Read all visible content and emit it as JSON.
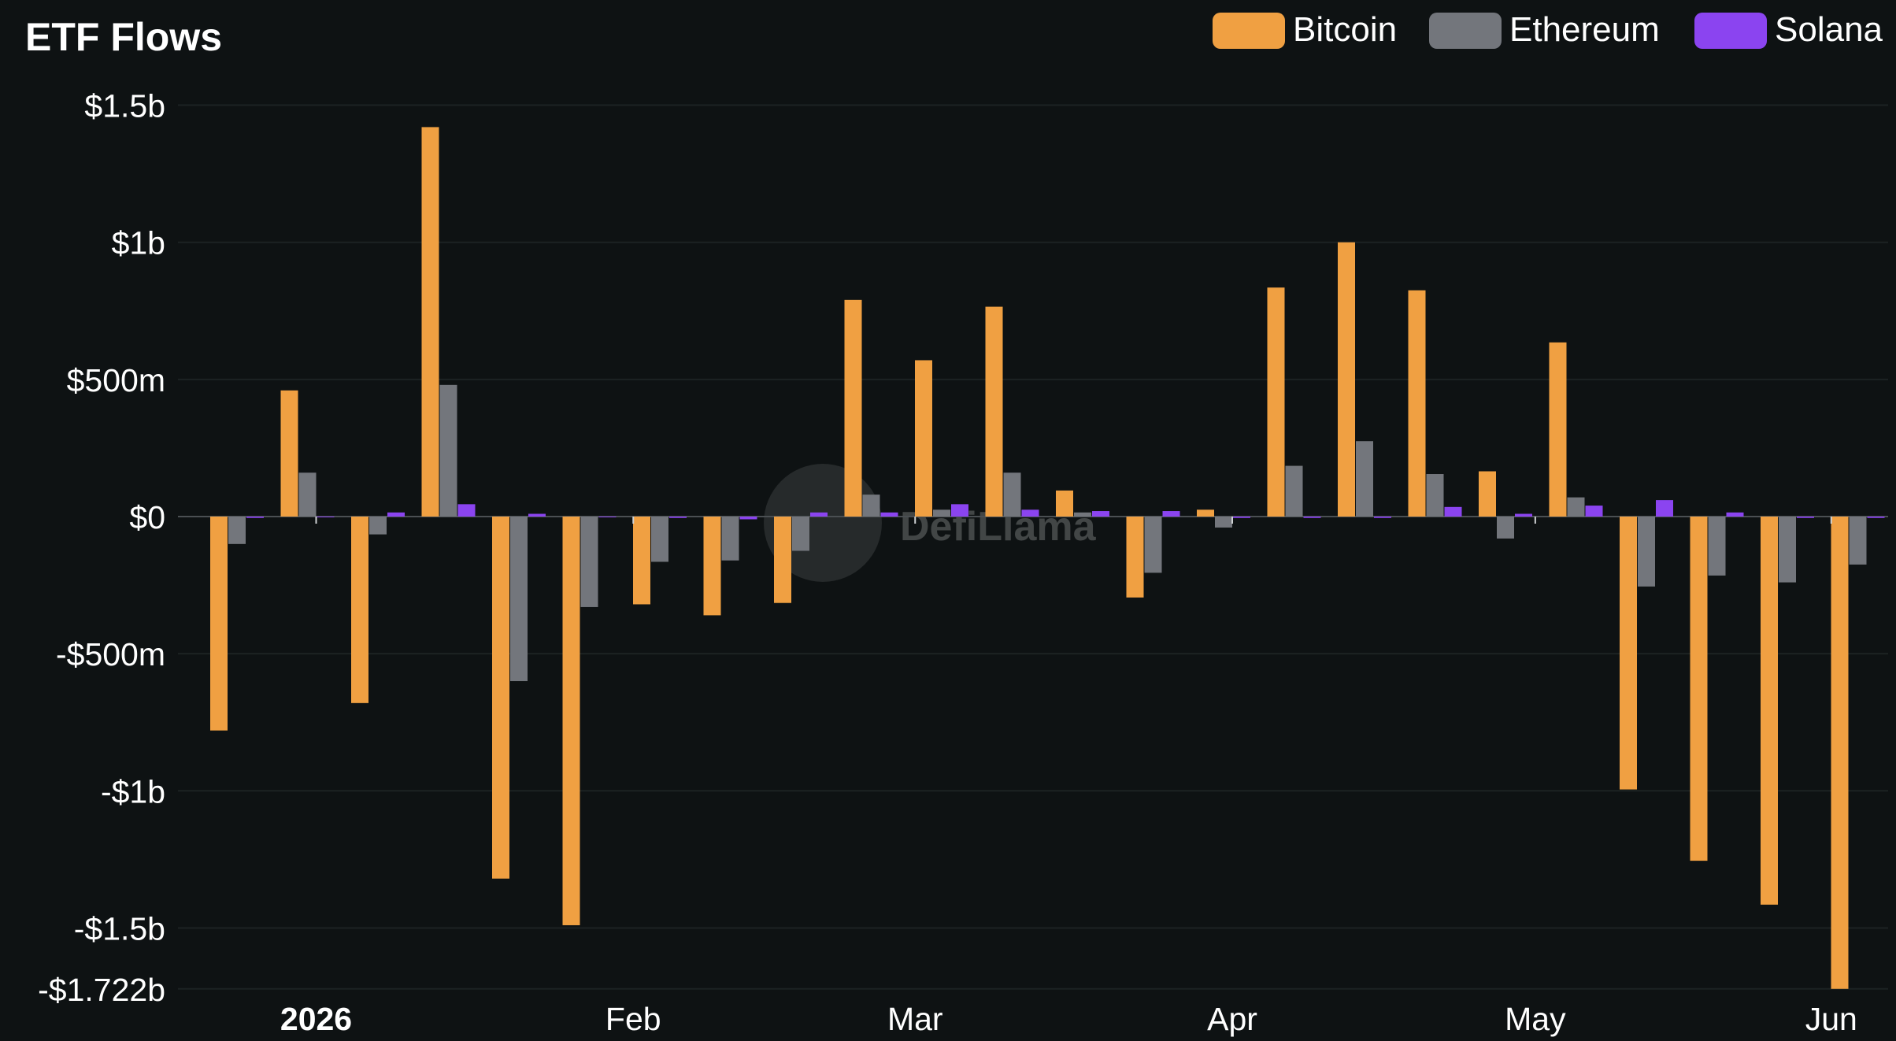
{
  "chart_data": {
    "type": "bar",
    "title": "ETF Flows",
    "watermark": "DefiLlama",
    "series": [
      {
        "name": "Bitcoin",
        "color": "#f0a042",
        "values": [
          -780,
          460,
          -680,
          1420,
          -1320,
          -1490,
          -320,
          -360,
          -315,
          790,
          570,
          765,
          95,
          -295,
          25,
          835,
          1000,
          825,
          165,
          635,
          -995,
          -1255,
          -1415,
          -1722
        ]
      },
      {
        "name": "Ethereum",
        "color": "#73767c",
        "values": [
          -100,
          160,
          -65,
          480,
          -600,
          -330,
          -165,
          -160,
          -125,
          80,
          25,
          160,
          15,
          -205,
          -40,
          185,
          275,
          155,
          -80,
          70,
          -255,
          -215,
          -240,
          -175
        ]
      },
      {
        "name": "Solana",
        "color": "#8b44f0",
        "values": [
          -5,
          0,
          15,
          45,
          10,
          0,
          -5,
          -10,
          15,
          15,
          45,
          25,
          20,
          20,
          -5,
          -5,
          -5,
          35,
          10,
          40,
          60,
          15,
          -5,
          -5
        ]
      }
    ],
    "x_ticks": [
      {
        "label": "2026",
        "week_index": 1,
        "bold": true
      },
      {
        "label": "Feb",
        "week_index": 5.5,
        "bold": false
      },
      {
        "label": "Mar",
        "week_index": 9.5,
        "bold": false
      },
      {
        "label": "Apr",
        "week_index": 14,
        "bold": false
      },
      {
        "label": "May",
        "week_index": 18.3,
        "bold": false
      },
      {
        "label": "Jun",
        "week_index": 22.5,
        "bold": false
      }
    ],
    "y_ticks": [
      {
        "label": "$1.5b",
        "value": 1500
      },
      {
        "label": "$1b",
        "value": 1000
      },
      {
        "label": "$500m",
        "value": 500
      },
      {
        "label": "$0",
        "value": 0
      },
      {
        "label": "-$500m",
        "value": -500
      },
      {
        "label": "-$1b",
        "value": -1000
      },
      {
        "label": "-$1.5b",
        "value": -1500
      },
      {
        "label": "-$1.722b",
        "value": -1722
      }
    ],
    "ylim": [
      -1722,
      1500
    ],
    "y_units": "millions USD",
    "grid": true,
    "legend_position": "top-right"
  }
}
